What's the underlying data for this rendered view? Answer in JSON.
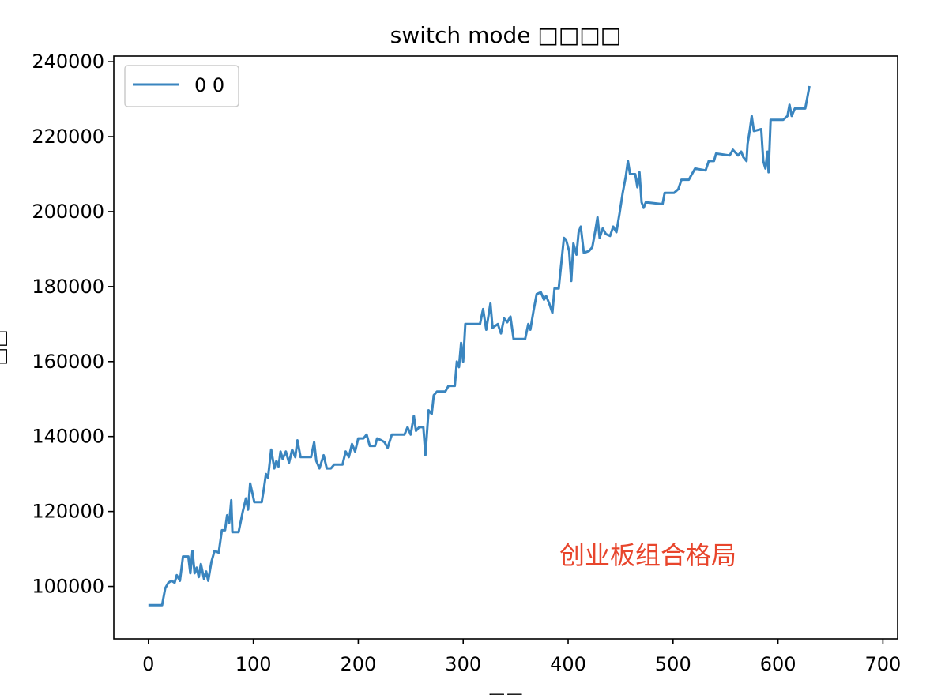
{
  "chart_data": {
    "type": "line",
    "title": "switch mode □□□□",
    "xlabel": "□□",
    "ylabel": "□□",
    "xlim": [
      -33,
      714
    ],
    "ylim": [
      86000,
      241500
    ],
    "x_ticks": [
      0,
      100,
      200,
      300,
      400,
      500,
      600,
      700
    ],
    "y_ticks": [
      100000,
      120000,
      140000,
      160000,
      180000,
      200000,
      220000,
      240000
    ],
    "grid": false,
    "legend": {
      "position": "upper-left",
      "entries": [
        "0 0"
      ]
    },
    "annotation": {
      "text": "创业板组合格局",
      "color": "#e8452c"
    },
    "series": [
      {
        "name": "0 0",
        "color": "#3a85bf",
        "points": [
          [
            0,
            95000
          ],
          [
            13,
            95000
          ],
          [
            16,
            99500
          ],
          [
            19,
            101000
          ],
          [
            22,
            101500
          ],
          [
            25,
            101000
          ],
          [
            27,
            103000
          ],
          [
            30,
            101500
          ],
          [
            33,
            108000
          ],
          [
            38,
            108000
          ],
          [
            40,
            103500
          ],
          [
            42,
            109500
          ],
          [
            44,
            103500
          ],
          [
            46,
            105000
          ],
          [
            48,
            102500
          ],
          [
            50,
            106000
          ],
          [
            53,
            102000
          ],
          [
            55,
            104000
          ],
          [
            57,
            101500
          ],
          [
            60,
            106500
          ],
          [
            63,
            109500
          ],
          [
            67,
            109000
          ],
          [
            70,
            115000
          ],
          [
            73,
            115000
          ],
          [
            75,
            119000
          ],
          [
            77,
            117000
          ],
          [
            79,
            123000
          ],
          [
            80,
            114500
          ],
          [
            86,
            114500
          ],
          [
            90,
            120000
          ],
          [
            93,
            123500
          ],
          [
            95,
            120500
          ],
          [
            97,
            127500
          ],
          [
            99,
            125000
          ],
          [
            101,
            122500
          ],
          [
            108,
            122500
          ],
          [
            110,
            126000
          ],
          [
            112,
            130000
          ],
          [
            114,
            129000
          ],
          [
            117,
            136500
          ],
          [
            120,
            131500
          ],
          [
            122,
            133500
          ],
          [
            124,
            132000
          ],
          [
            126,
            136000
          ],
          [
            128,
            134000
          ],
          [
            131,
            136000
          ],
          [
            134,
            133000
          ],
          [
            137,
            136500
          ],
          [
            140,
            134500
          ],
          [
            142,
            139000
          ],
          [
            145,
            134500
          ],
          [
            155,
            134500
          ],
          [
            158,
            138500
          ],
          [
            160,
            133500
          ],
          [
            163,
            131500
          ],
          [
            167,
            135000
          ],
          [
            170,
            131500
          ],
          [
            174,
            131500
          ],
          [
            177,
            132500
          ],
          [
            185,
            132500
          ],
          [
            188,
            136000
          ],
          [
            191,
            134500
          ],
          [
            194,
            138000
          ],
          [
            197,
            136000
          ],
          [
            200,
            139500
          ],
          [
            205,
            139500
          ],
          [
            208,
            140500
          ],
          [
            211,
            137500
          ],
          [
            216,
            137500
          ],
          [
            218,
            139500
          ],
          [
            222,
            139000
          ],
          [
            225,
            138500
          ],
          [
            228,
            137000
          ],
          [
            232,
            140500
          ],
          [
            244,
            140500
          ],
          [
            247,
            142500
          ],
          [
            250,
            140500
          ],
          [
            253,
            145500
          ],
          [
            255,
            141500
          ],
          [
            258,
            142500
          ],
          [
            262,
            142500
          ],
          [
            264,
            135000
          ],
          [
            267,
            147000
          ],
          [
            270,
            146000
          ],
          [
            272,
            151000
          ],
          [
            275,
            152000
          ],
          [
            283,
            152000
          ],
          [
            286,
            153500
          ],
          [
            292,
            153500
          ],
          [
            294,
            160000
          ],
          [
            296,
            158500
          ],
          [
            298,
            165000
          ],
          [
            300,
            160000
          ],
          [
            302,
            170000
          ],
          [
            316,
            170000
          ],
          [
            319,
            174000
          ],
          [
            322,
            168500
          ],
          [
            326,
            175500
          ],
          [
            328,
            169000
          ],
          [
            333,
            170000
          ],
          [
            336,
            167500
          ],
          [
            339,
            171500
          ],
          [
            342,
            170500
          ],
          [
            345,
            172000
          ],
          [
            348,
            166000
          ],
          [
            359,
            166000
          ],
          [
            362,
            170000
          ],
          [
            364,
            168500
          ],
          [
            367,
            173500
          ],
          [
            370,
            178000
          ],
          [
            374,
            178500
          ],
          [
            377,
            176500
          ],
          [
            379,
            177500
          ],
          [
            382,
            175500
          ],
          [
            385,
            173000
          ],
          [
            387,
            179500
          ],
          [
            391,
            179500
          ],
          [
            394,
            187500
          ],
          [
            396,
            193000
          ],
          [
            398,
            192500
          ],
          [
            401,
            189500
          ],
          [
            403,
            181500
          ],
          [
            405,
            191500
          ],
          [
            408,
            188500
          ],
          [
            410,
            194500
          ],
          [
            412,
            196000
          ],
          [
            415,
            189000
          ],
          [
            420,
            189500
          ],
          [
            423,
            190500
          ],
          [
            426,
            195000
          ],
          [
            428,
            198500
          ],
          [
            430,
            193000
          ],
          [
            433,
            195500
          ],
          [
            436,
            194000
          ],
          [
            440,
            193500
          ],
          [
            443,
            196000
          ],
          [
            446,
            194500
          ],
          [
            449,
            199500
          ],
          [
            452,
            205000
          ],
          [
            455,
            209500
          ],
          [
            457,
            213500
          ],
          [
            459,
            210000
          ],
          [
            464,
            210000
          ],
          [
            466,
            206500
          ],
          [
            468,
            210500
          ],
          [
            470,
            202500
          ],
          [
            472,
            201000
          ],
          [
            474,
            202500
          ],
          [
            490,
            202000
          ],
          [
            492,
            205000
          ],
          [
            501,
            205000
          ],
          [
            505,
            206000
          ],
          [
            508,
            208500
          ],
          [
            515,
            208500
          ],
          [
            518,
            210000
          ],
          [
            521,
            211500
          ],
          [
            531,
            211000
          ],
          [
            534,
            213500
          ],
          [
            539,
            213500
          ],
          [
            541,
            215500
          ],
          [
            554,
            215000
          ],
          [
            557,
            216500
          ],
          [
            562,
            215000
          ],
          [
            565,
            216000
          ],
          [
            567,
            214500
          ],
          [
            570,
            213500
          ],
          [
            571,
            218000
          ],
          [
            573,
            221500
          ],
          [
            575,
            225500
          ],
          [
            577,
            221500
          ],
          [
            584,
            222000
          ],
          [
            586,
            213500
          ],
          [
            588,
            211500
          ],
          [
            590,
            216000
          ],
          [
            591,
            210500
          ],
          [
            593,
            224500
          ],
          [
            605,
            224500
          ],
          [
            609,
            225500
          ],
          [
            611,
            228500
          ],
          [
            613,
            225500
          ],
          [
            616,
            227500
          ],
          [
            626,
            227500
          ],
          [
            628,
            230500
          ],
          [
            630,
            233500
          ]
        ]
      }
    ]
  }
}
